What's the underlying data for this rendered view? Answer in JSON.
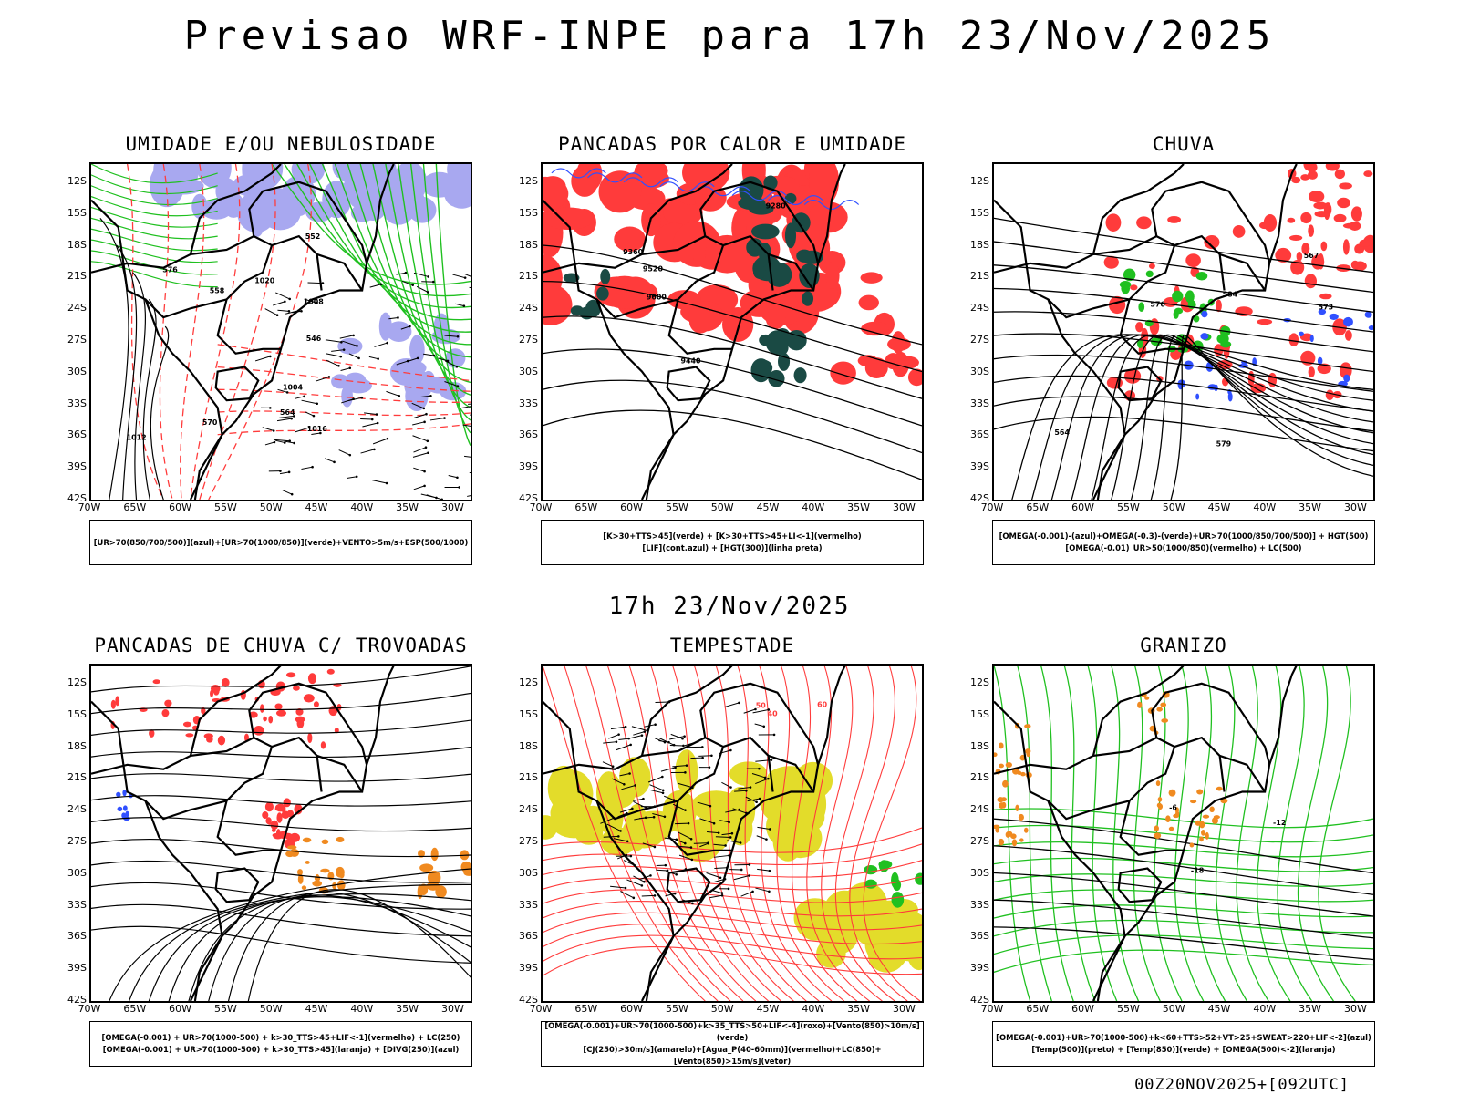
{
  "title": "Previsao WRF-INPE  para 17h 23/Nov/2025",
  "middle_title": "17h 23/Nov/2025",
  "footer": "00Z20NOV2025+[092UTC]",
  "axes": {
    "lat_ticks": [
      "12S",
      "15S",
      "18S",
      "21S",
      "24S",
      "27S",
      "30S",
      "33S",
      "36S",
      "39S",
      "42S"
    ],
    "lon_ticks": [
      "70W",
      "65W",
      "60W",
      "55W",
      "50W",
      "45W",
      "40W",
      "35W",
      "30W"
    ]
  },
  "panels": [
    {
      "id": "umidade",
      "title": "UMIDADE E/OU NEBULOSIDADE",
      "legend": [
        "[UR>70(850/700/500)](azul)+[UR>70(1000/850)](verde)+VENTO>5m/s+ESP(500/1000)"
      ],
      "contour_labels": [
        "1008",
        "1004",
        "1012",
        "1016",
        "576",
        "570",
        "564",
        "558",
        "552",
        "546",
        "1020"
      ]
    },
    {
      "id": "pancadas-calor",
      "title": "PANCADAS POR CALOR E UMIDADE",
      "legend": [
        "[K>30+TTS>45](verde) + [K>30+TTS>45+LI<-1](vermelho)",
        "[LIF](cont.azul) + [HGT(300)](linha preta)"
      ],
      "contour_labels": [
        "9600",
        "9520",
        "9440",
        "9360",
        "9280"
      ]
    },
    {
      "id": "chuva",
      "title": "CHUVA",
      "legend": [
        "[OMEGA(-0.001)-(azul)+OMEGA(-0.3)-(verde)+UR>70(1000/850/700/500)] + HGT(500)",
        "[OMEGA(-0.01)_UR>50(1000/850)(vermelho) + LC(500)"
      ],
      "contour_labels": [
        "579",
        "576",
        "573",
        "567",
        "564",
        "584"
      ]
    },
    {
      "id": "trovoadas",
      "title": "PANCADAS DE CHUVA C/ TROVOADAS",
      "legend": [
        "[OMEGA(-0.001) + UR>70(1000-500) + k>30_TTS>45+LIF<-1](vermelho) + LC(250)",
        "[OMEGA(-0.001) + UR>70(1000-500) + k>30_TTS>45](laranja) + [DIVG(250)](azul)"
      ],
      "contour_labels": []
    },
    {
      "id": "tempestade",
      "title": "TEMPESTADE",
      "legend": [
        "[OMEGA(-0.001)+UR>70(1000-500)+k>35_TTS>50+LIF<-4](roxo)+[Vento(850)>10m/s](verde)",
        "[CJ(250)>30m/s](amarelo)+[Agua_P(40-60mm)](vermelho)+LC(850)+[Vento(850)>15m/s](vetor)"
      ],
      "contour_labels": [
        "40",
        "50",
        "60"
      ]
    },
    {
      "id": "granizo",
      "title": "GRANIZO",
      "legend": [
        "[OMEGA(-0.001)+UR>70(1000-500)+k<60+TTS>52+VT>25+SWEAT>220+LIF<-2](azul)",
        "[Temp(500)](preto) + [Temp(850)](verde) + [OMEGA(500)<-2](laranja)"
      ],
      "contour_labels": [
        "-12",
        "-18",
        "-6"
      ]
    }
  ],
  "colors": {
    "red": "#ff3b3b",
    "green": "#20c020",
    "blue": "#3050ff",
    "lavender": "#a8a8f0",
    "darkgreen": "#1a4a44",
    "yellow": "#e3dc2a",
    "orange": "#f08a20",
    "black": "#000000"
  }
}
